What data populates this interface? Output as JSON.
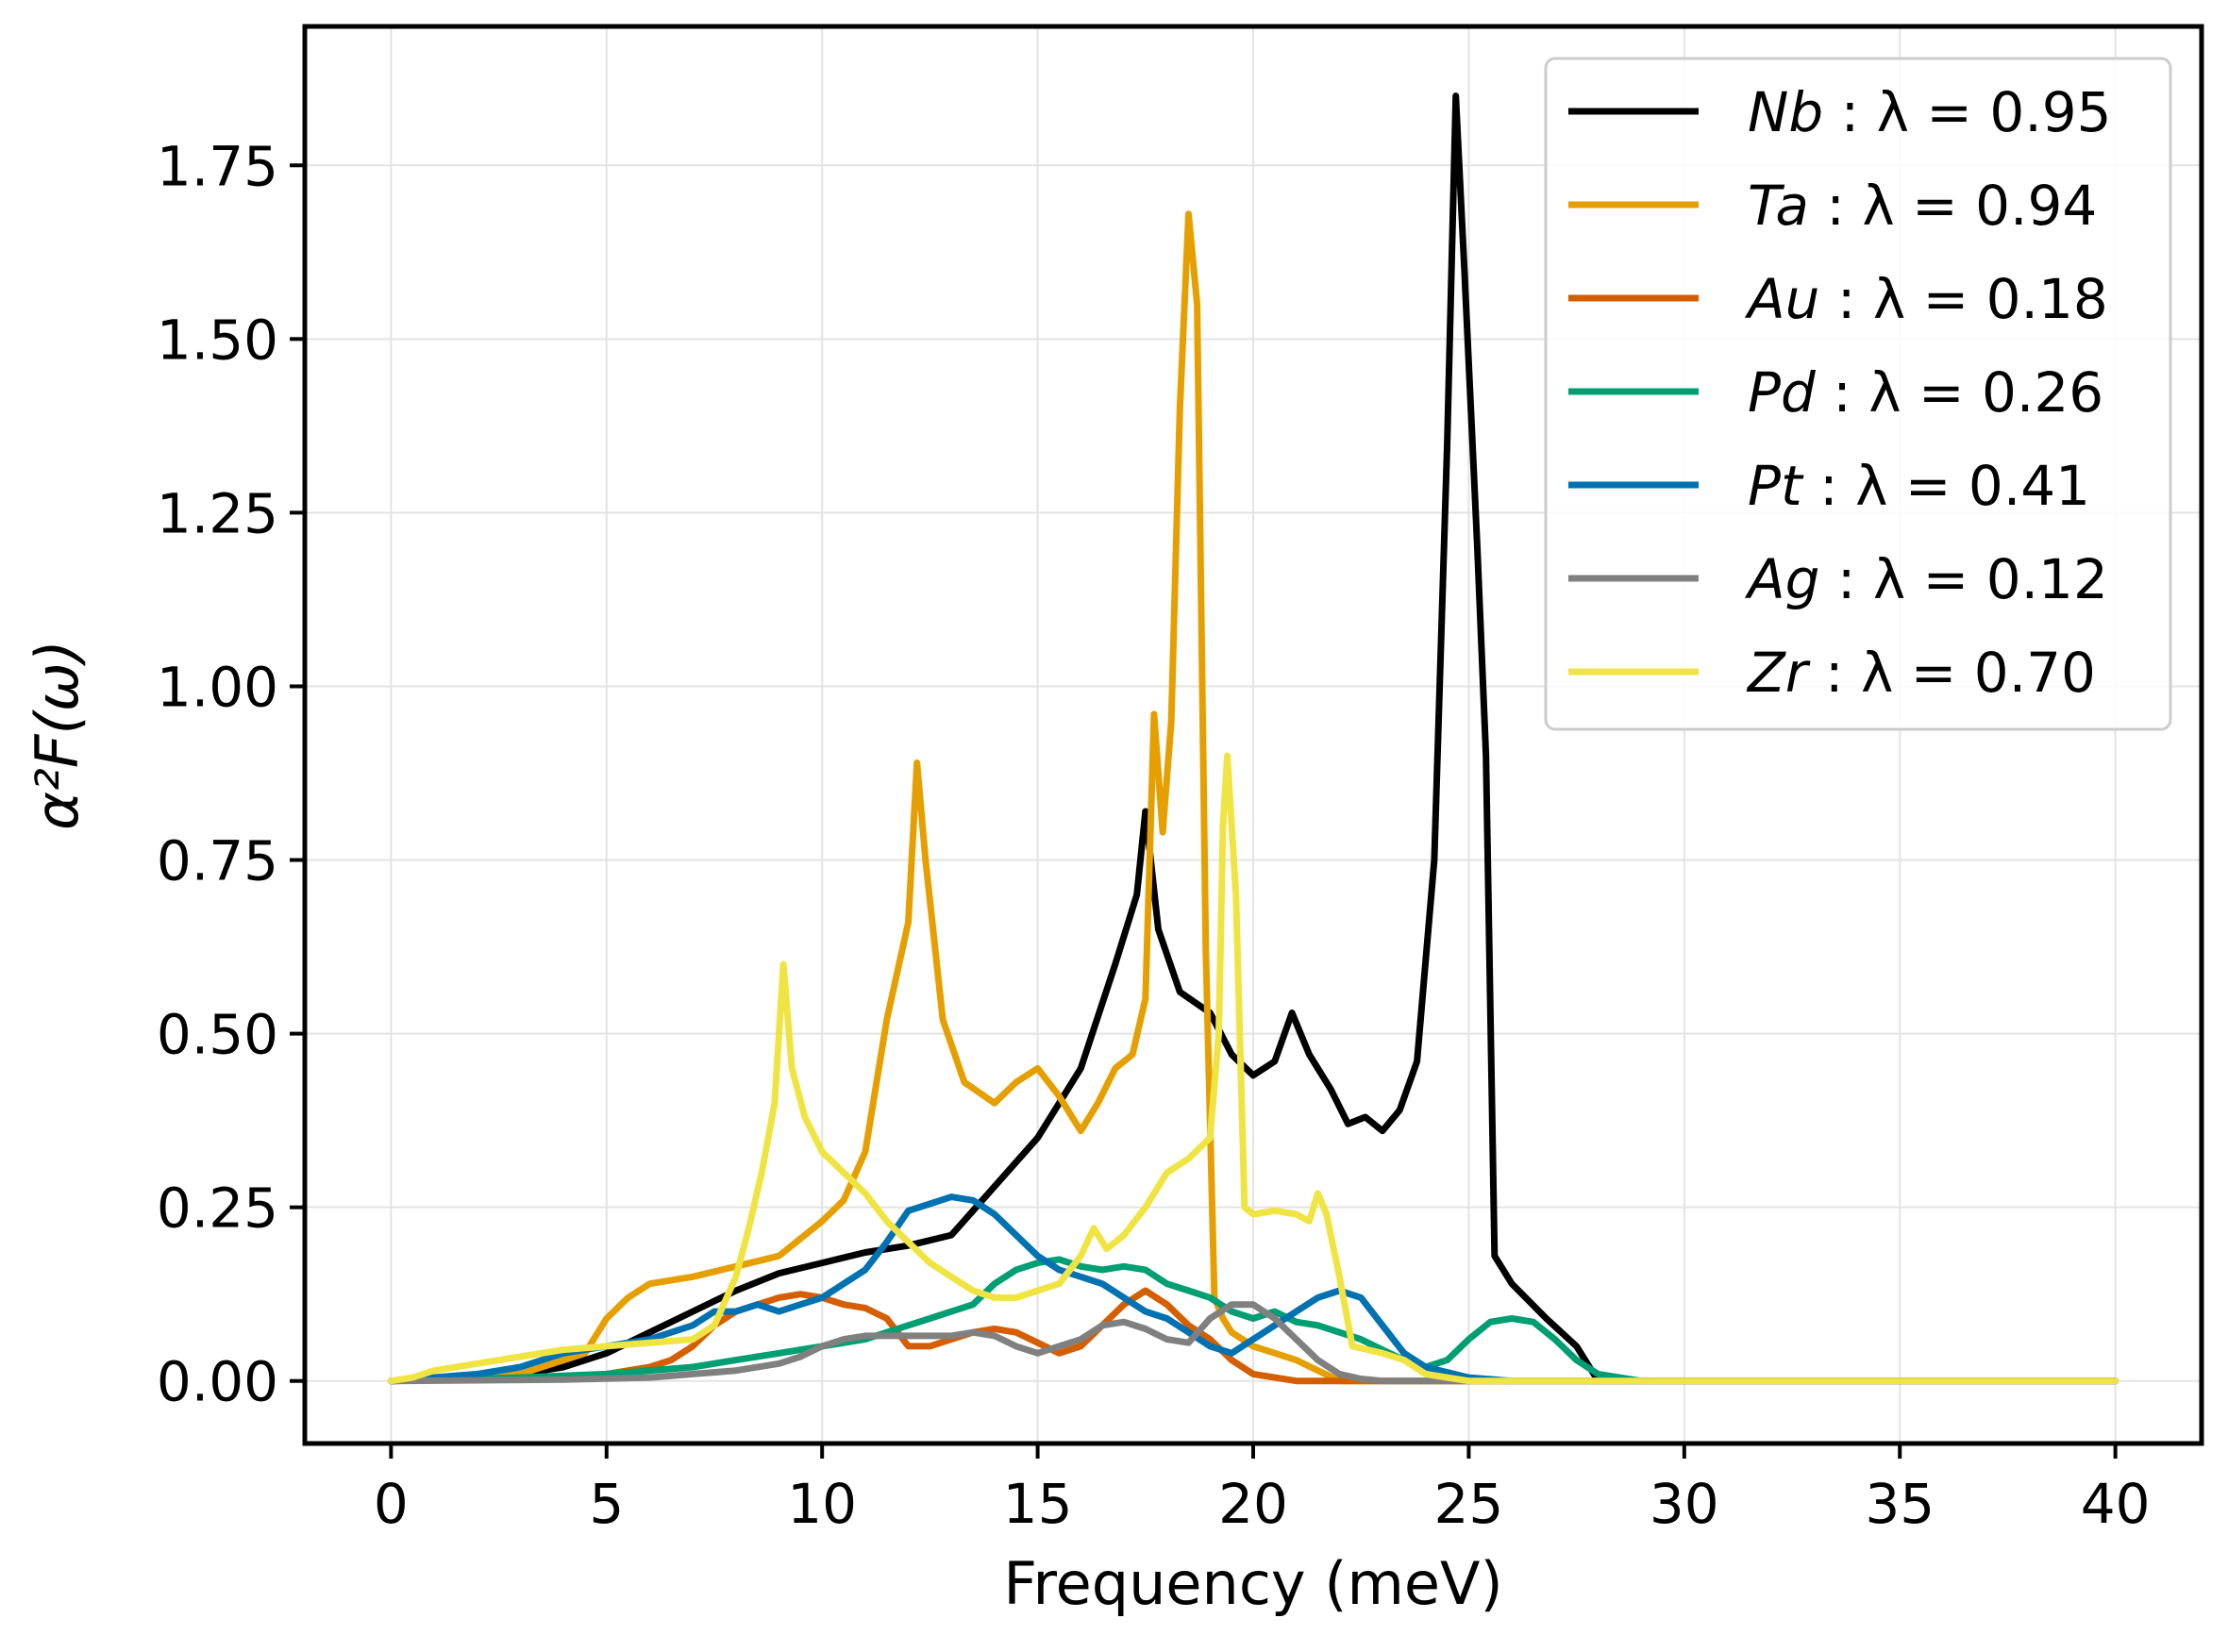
{
  "chart_data": {
    "type": "line",
    "title": "",
    "xlabel": "Frequency (meV)",
    "ylabel": "α²F(ω)",
    "xlim": [
      -2,
      42
    ],
    "ylim": [
      -0.09,
      1.95
    ],
    "xticks": [
      0,
      5,
      10,
      15,
      20,
      25,
      30,
      35,
      40
    ],
    "xtick_labels": [
      "0",
      "5",
      "10",
      "15",
      "20",
      "25",
      "30",
      "35",
      "40"
    ],
    "yticks": [
      0.0,
      0.25,
      0.5,
      0.75,
      1.0,
      1.25,
      1.5,
      1.75
    ],
    "ytick_labels": [
      "0.00",
      "0.25",
      "0.50",
      "0.75",
      "1.00",
      "1.25",
      "1.50",
      "1.75"
    ],
    "grid": true,
    "legend_position": "top-right",
    "series": [
      {
        "name": "Nb",
        "lambda_text": "λ = 0.95",
        "color": "#000000",
        "x": [
          0,
          2,
          3,
          4,
          5,
          6,
          7,
          8,
          9,
          10,
          11,
          12,
          13,
          14,
          15,
          16,
          16.8,
          17.3,
          17.5,
          17.8,
          18.3,
          19,
          19.5,
          20,
          20.5,
          20.9,
          21.3,
          21.8,
          22.2,
          22.6,
          23,
          23.4,
          23.8,
          24.2,
          24.5,
          24.7,
          24.9,
          25.2,
          25.4,
          25.6,
          26,
          26.8,
          27.5,
          28,
          29,
          30,
          40
        ],
        "y": [
          0,
          0.005,
          0.01,
          0.02,
          0.04,
          0.07,
          0.1,
          0.13,
          0.155,
          0.17,
          0.185,
          0.195,
          0.21,
          0.28,
          0.35,
          0.45,
          0.6,
          0.7,
          0.82,
          0.65,
          0.56,
          0.53,
          0.47,
          0.44,
          0.46,
          0.53,
          0.47,
          0.42,
          0.37,
          0.38,
          0.36,
          0.39,
          0.46,
          0.75,
          1.35,
          1.85,
          1.6,
          1.2,
          0.9,
          0.18,
          0.14,
          0.09,
          0.05,
          0,
          0,
          0,
          0
        ]
      },
      {
        "name": "Ta",
        "lambda_text": "λ = 0.94",
        "color": "#E69F00",
        "x": [
          0,
          3,
          4.5,
          5,
          5.5,
          6,
          7,
          8,
          9,
          10,
          10.5,
          11,
          11.5,
          12,
          12.2,
          12.4,
          12.8,
          13.3,
          14,
          14.5,
          15,
          15.5,
          16,
          16.4,
          16.8,
          17.2,
          17.5,
          17.7,
          17.9,
          18.1,
          18.3,
          18.5,
          18.7,
          18.9,
          19.1,
          19.3,
          19.5,
          20,
          21,
          22,
          40
        ],
        "y": [
          0,
          0.01,
          0.04,
          0.09,
          0.12,
          0.14,
          0.15,
          0.165,
          0.18,
          0.23,
          0.26,
          0.33,
          0.52,
          0.66,
          0.89,
          0.75,
          0.52,
          0.43,
          0.4,
          0.43,
          0.45,
          0.41,
          0.36,
          0.4,
          0.45,
          0.47,
          0.55,
          0.96,
          0.79,
          0.95,
          1.4,
          1.68,
          1.55,
          0.62,
          0.12,
          0.09,
          0.07,
          0.05,
          0.03,
          0,
          0
        ]
      },
      {
        "name": "Au",
        "lambda_text": "λ = 0.18",
        "color": "#D55E00",
        "x": [
          0,
          4,
          5,
          6,
          6.5,
          7,
          7.5,
          8,
          8.5,
          9,
          9.5,
          10,
          10.5,
          11,
          11.5,
          12,
          12.5,
          13,
          13.5,
          14,
          14.5,
          15,
          15.5,
          16,
          16.5,
          17,
          17.5,
          18,
          18.5,
          19,
          19.5,
          20,
          21,
          22,
          40
        ],
        "y": [
          0,
          0.005,
          0.01,
          0.02,
          0.03,
          0.05,
          0.08,
          0.1,
          0.11,
          0.12,
          0.125,
          0.12,
          0.11,
          0.105,
          0.09,
          0.05,
          0.05,
          0.06,
          0.07,
          0.075,
          0.07,
          0.055,
          0.04,
          0.05,
          0.08,
          0.11,
          0.13,
          0.11,
          0.08,
          0.06,
          0.03,
          0.01,
          0,
          0,
          0
        ]
      },
      {
        "name": "Pd",
        "lambda_text": "λ = 0.26",
        "color": "#009E73",
        "x": [
          0,
          3,
          5,
          6,
          7,
          8,
          9,
          10,
          11,
          12,
          12.5,
          13,
          13.5,
          14,
          14.5,
          15,
          15.5,
          16,
          16.5,
          17,
          17.5,
          18,
          18.5,
          19,
          19.5,
          20,
          20.5,
          21,
          21.5,
          22,
          22.5,
          23,
          23.5,
          24,
          24.5,
          25,
          25.5,
          26,
          26.5,
          27,
          27.5,
          28,
          29,
          30,
          40
        ],
        "y": [
          0,
          0.005,
          0.01,
          0.015,
          0.02,
          0.03,
          0.04,
          0.05,
          0.06,
          0.08,
          0.09,
          0.1,
          0.11,
          0.14,
          0.16,
          0.17,
          0.175,
          0.165,
          0.16,
          0.165,
          0.16,
          0.14,
          0.13,
          0.12,
          0.1,
          0.09,
          0.1,
          0.085,
          0.08,
          0.07,
          0.06,
          0.045,
          0.03,
          0.02,
          0.03,
          0.06,
          0.085,
          0.09,
          0.085,
          0.06,
          0.03,
          0.01,
          0,
          0,
          0
        ]
      },
      {
        "name": "Pt",
        "lambda_text": "λ = 0.41",
        "color": "#0072B2",
        "x": [
          0,
          2,
          3,
          4,
          5,
          6,
          7,
          7.5,
          8,
          8.5,
          9,
          9.5,
          10,
          10.5,
          11,
          11.5,
          12,
          12.5,
          13,
          13.5,
          14,
          14.5,
          15,
          15.5,
          16,
          16.5,
          17,
          17.5,
          18,
          18.5,
          19,
          19.5,
          20,
          20.5,
          21,
          21.5,
          22,
          22.5,
          23,
          23.5,
          24,
          25,
          26,
          40
        ],
        "y": [
          0,
          0.01,
          0.02,
          0.04,
          0.05,
          0.06,
          0.08,
          0.1,
          0.1,
          0.11,
          0.1,
          0.11,
          0.12,
          0.14,
          0.16,
          0.2,
          0.245,
          0.255,
          0.265,
          0.26,
          0.24,
          0.21,
          0.18,
          0.16,
          0.15,
          0.14,
          0.12,
          0.1,
          0.09,
          0.07,
          0.05,
          0.04,
          0.06,
          0.08,
          0.1,
          0.12,
          0.13,
          0.12,
          0.08,
          0.04,
          0.02,
          0.005,
          0,
          0
        ]
      },
      {
        "name": "Ag",
        "lambda_text": "λ = 0.12",
        "color": "#808080",
        "x": [
          0,
          4,
          6,
          7,
          8,
          9,
          9.5,
          10,
          10.5,
          11,
          11.5,
          12,
          12.5,
          13,
          13.5,
          14,
          14.5,
          15,
          15.5,
          16,
          16.5,
          17,
          17.5,
          18,
          18.5,
          19,
          19.5,
          20,
          20.5,
          21,
          21.5,
          22,
          22.5,
          23,
          24,
          40
        ],
        "y": [
          0,
          0.002,
          0.005,
          0.01,
          0.015,
          0.025,
          0.035,
          0.05,
          0.06,
          0.065,
          0.065,
          0.065,
          0.065,
          0.065,
          0.07,
          0.065,
          0.05,
          0.04,
          0.05,
          0.06,
          0.08,
          0.085,
          0.075,
          0.06,
          0.055,
          0.09,
          0.11,
          0.11,
          0.09,
          0.06,
          0.03,
          0.01,
          0.003,
          0,
          0,
          0
        ]
      },
      {
        "name": "Zr",
        "lambda_text": "λ = 0.70",
        "color": "#F0E442",
        "x": [
          0,
          0.5,
          1,
          2,
          3,
          4,
          5,
          6,
          7,
          7.5,
          8,
          8.3,
          8.6,
          8.9,
          9.1,
          9.3,
          9.6,
          10,
          10.5,
          11,
          11.5,
          12,
          12.5,
          13,
          13.5,
          14,
          14.5,
          15,
          15.5,
          16,
          16.3,
          16.6,
          17,
          17.5,
          18,
          18.5,
          19,
          19.2,
          19.3,
          19.4,
          19.6,
          19.8,
          20,
          20.5,
          21,
          21.3,
          21.5,
          21.7,
          22,
          22.3,
          23,
          23.5,
          24,
          25,
          40
        ],
        "y": [
          0,
          0.005,
          0.015,
          0.025,
          0.035,
          0.045,
          0.05,
          0.055,
          0.06,
          0.08,
          0.15,
          0.22,
          0.3,
          0.4,
          0.6,
          0.45,
          0.38,
          0.33,
          0.3,
          0.27,
          0.23,
          0.2,
          0.17,
          0.15,
          0.13,
          0.12,
          0.12,
          0.13,
          0.14,
          0.18,
          0.22,
          0.19,
          0.21,
          0.25,
          0.3,
          0.32,
          0.35,
          0.5,
          0.8,
          0.9,
          0.7,
          0.25,
          0.24,
          0.245,
          0.24,
          0.23,
          0.27,
          0.24,
          0.15,
          0.05,
          0.04,
          0.03,
          0.01,
          0,
          0
        ]
      }
    ]
  }
}
